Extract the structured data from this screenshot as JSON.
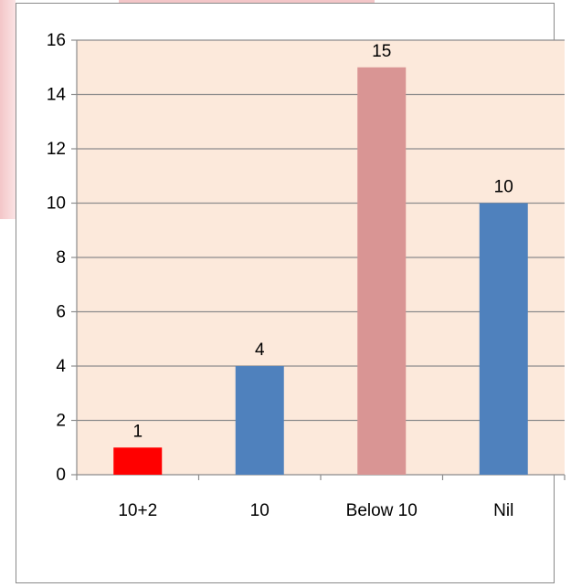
{
  "chart_data": {
    "type": "bar",
    "categories": [
      "10+2",
      "10",
      "Below 10",
      "Nil"
    ],
    "values": [
      1,
      4,
      15,
      10
    ],
    "bar_colors": [
      "#ff0000",
      "#4f81bd",
      "#d99594",
      "#4f81bd"
    ],
    "data_labels": [
      "1",
      "4",
      "15",
      "10"
    ],
    "yticks": [
      "0",
      "2",
      "4",
      "6",
      "8",
      "10",
      "12",
      "14",
      "16"
    ],
    "ylim": [
      0,
      16
    ],
    "grid": true,
    "plot_background": "#fce9db",
    "title": "",
    "xlabel": "",
    "ylabel": ""
  }
}
